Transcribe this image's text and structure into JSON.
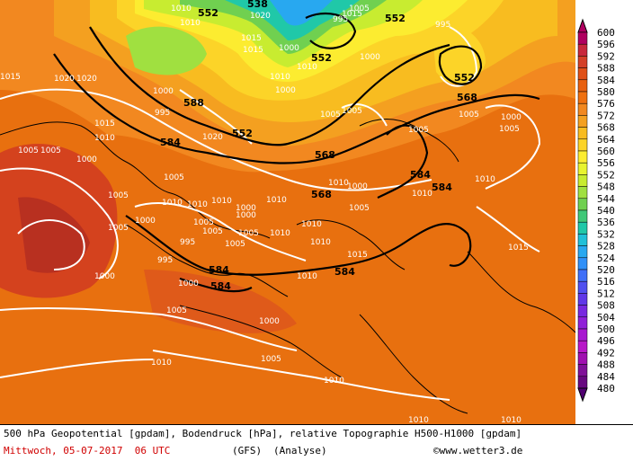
{
  "legend": {
    "values": [
      "600",
      "596",
      "592",
      "588",
      "584",
      "580",
      "576",
      "572",
      "568",
      "564",
      "560",
      "556",
      "552",
      "548",
      "544",
      "540",
      "536",
      "532",
      "528",
      "524",
      "520",
      "516",
      "512",
      "508",
      "504",
      "500",
      "496",
      "492",
      "488",
      "484",
      "480"
    ],
    "colors": [
      "#b00060",
      "#c8283c",
      "#d44028",
      "#e05018",
      "#e86010",
      "#ef7010",
      "#f28820",
      "#f4a020",
      "#f8bc20",
      "#fcd428",
      "#fcec30",
      "#e8f430",
      "#c8ec30",
      "#a0e040",
      "#70d050",
      "#40c878",
      "#20c8a8",
      "#20c0d8",
      "#28a8f0",
      "#3090f8",
      "#4070f8",
      "#5050f0",
      "#6038e8",
      "#7828e0",
      "#9020d8",
      "#a818d0",
      "#b818c8",
      "#a010b0",
      "#801098",
      "#680880",
      "#500070"
    ]
  },
  "map_labels": {
    "pressure": [
      "1010",
      "1010",
      "1020",
      "1005",
      "1015",
      "1015",
      "1010",
      "1005",
      "1000",
      "1000",
      "995",
      "1000",
      "1010",
      "1015",
      "1020",
      "1020",
      "1005",
      "1000",
      "1005",
      "1010",
      "1005",
      "1000",
      "1000",
      "1010",
      "995",
      "1000",
      "1010",
      "1015",
      "1020",
      "1010",
      "995",
      "1000",
      "1005",
      "1005",
      "1010",
      "1005",
      "1005",
      "1010",
      "1005",
      "1000",
      "1000",
      "1005",
      "1015",
      "1015",
      "1005",
      "1000",
      "995",
      "1005",
      "1005",
      "1005",
      "1010",
      "1010",
      "1015",
      "1010",
      "1010",
      "1005",
      "995",
      "1000",
      "1000",
      "1005",
      "1005",
      "1010",
      "1010",
      "1010",
      "1010",
      "1010",
      "1010"
    ],
    "geopotential": [
      "552",
      "538",
      "552",
      "552",
      "552",
      "588",
      "568",
      "552",
      "584",
      "568",
      "568",
      "584",
      "584",
      "584",
      "584",
      "584"
    ]
  },
  "footer": {
    "line1": "500 hPa Geopotential [gpdam], Bodendruck [hPa], relative Topographie H500-H1000 [gpdam]",
    "date": "Mittwoch, 05-07-2017  06 UTC",
    "model": "(GFS)",
    "mode": "(Analyse)",
    "copyright": "©www.wetter3.de"
  },
  "colors": {
    "border": "#000000",
    "accent_red": "#d00000"
  }
}
